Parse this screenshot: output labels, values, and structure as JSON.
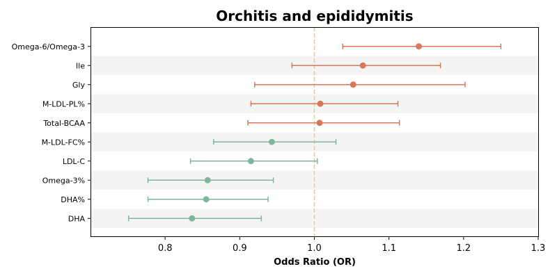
{
  "chart_data": {
    "type": "forest",
    "title": "Orchitis and epididymitis",
    "xlabel": "Odds Ratio (OR)",
    "xlim": [
      0.7,
      1.3
    ],
    "xticks": [
      "0.8",
      "0.9",
      "1.0",
      "1.1",
      "1.2",
      "1.3"
    ],
    "reference_line": 1.0,
    "reference_color": "#f5c27a",
    "band_color": "#f4f4f4",
    "colors": {
      "risk": "#d9775a",
      "protective": "#7fb59b"
    },
    "rows": [
      {
        "label": "Omega-6/Omega-3",
        "or": 1.14,
        "lower": 1.038,
        "upper": 1.25,
        "group": "risk"
      },
      {
        "label": "Ile",
        "or": 1.065,
        "lower": 0.97,
        "upper": 1.169,
        "group": "risk"
      },
      {
        "label": "Gly",
        "or": 1.052,
        "lower": 0.92,
        "upper": 1.202,
        "group": "risk"
      },
      {
        "label": "M-LDL-PL%",
        "or": 1.008,
        "lower": 0.915,
        "upper": 1.112,
        "group": "risk"
      },
      {
        "label": "Total-BCAA",
        "or": 1.007,
        "lower": 0.911,
        "upper": 1.114,
        "group": "risk"
      },
      {
        "label": "M-LDL-FC%",
        "or": 0.943,
        "lower": 0.865,
        "upper": 1.029,
        "group": "protective"
      },
      {
        "label": "LDL-C",
        "or": 0.915,
        "lower": 0.834,
        "upper": 1.004,
        "group": "protective"
      },
      {
        "label": "Omega-3%",
        "or": 0.857,
        "lower": 0.777,
        "upper": 0.945,
        "group": "protective"
      },
      {
        "label": "DHA%",
        "or": 0.855,
        "lower": 0.777,
        "upper": 0.938,
        "group": "protective"
      },
      {
        "label": "DHA",
        "or": 0.836,
        "lower": 0.751,
        "upper": 0.929,
        "group": "protective"
      }
    ]
  }
}
